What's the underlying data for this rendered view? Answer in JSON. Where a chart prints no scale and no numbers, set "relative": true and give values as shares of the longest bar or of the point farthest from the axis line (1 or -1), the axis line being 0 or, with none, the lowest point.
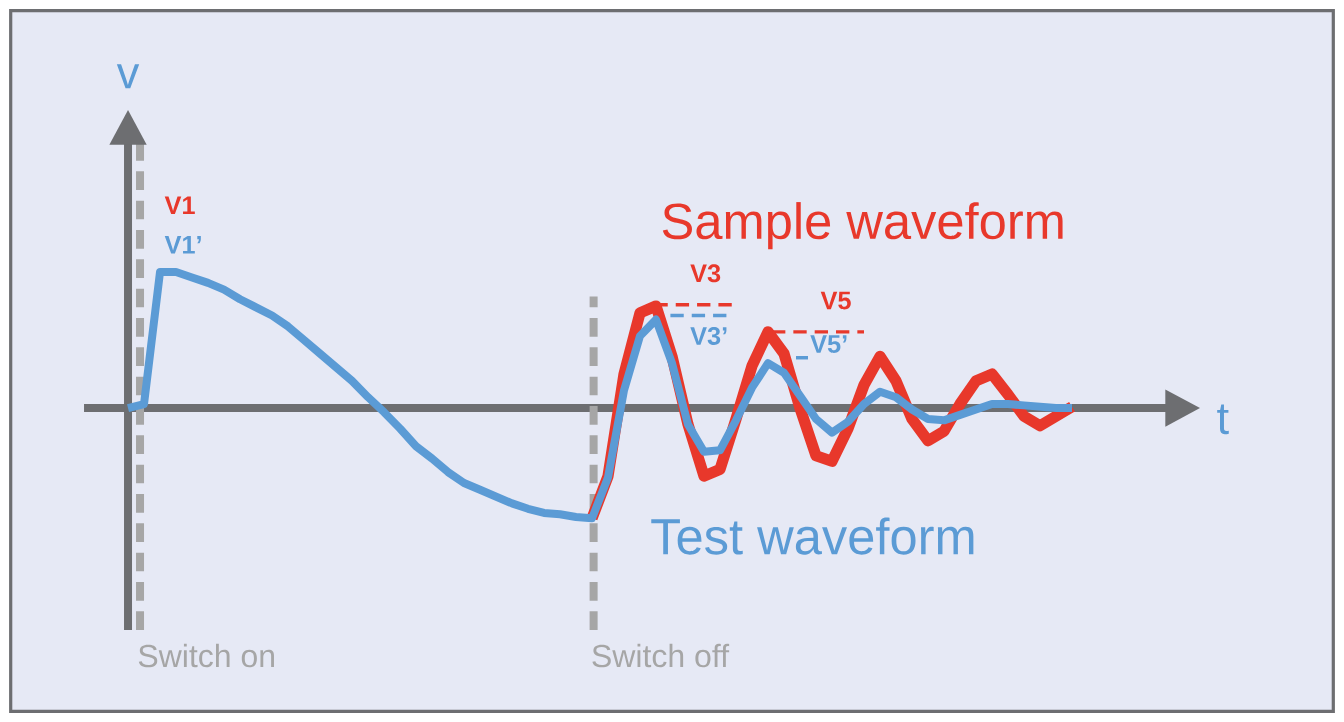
{
  "chart_data": {
    "type": "line",
    "relative": true,
    "xlabel": "t",
    "ylabel": "v",
    "legend": false,
    "marker": "none",
    "line_style": "solid",
    "categories": [
      null,
      null,
      null,
      null,
      null,
      null,
      null,
      null,
      null,
      null,
      null,
      null,
      null,
      null,
      null,
      null,
      null,
      null,
      null,
      null,
      null,
      null,
      null,
      null,
      null,
      null,
      null,
      null,
      null,
      null,
      null,
      null,
      null,
      null,
      null,
      null,
      null,
      null,
      null,
      null,
      null,
      null,
      null,
      null,
      null,
      null,
      null,
      null,
      null,
      null,
      null,
      null,
      null,
      null,
      null,
      null,
      null,
      null,
      null,
      null
    ],
    "series": [
      {
        "name": "Sample waveform",
        "color": "#e8382b",
        "values": [
          null,
          null,
          null,
          null,
          null,
          null,
          null,
          null,
          null,
          null,
          null,
          null,
          null,
          null,
          null,
          null,
          null,
          null,
          null,
          null,
          null,
          null,
          null,
          null,
          null,
          null,
          null,
          null,
          null,
          -0.81,
          -0.5,
          0.25,
          0.7,
          0.75,
          0.38,
          -0.12,
          -0.5,
          -0.45,
          -0.08,
          0.31,
          0.56,
          0.4,
          0,
          -0.35,
          -0.39,
          -0.15,
          0.17,
          0.38,
          0.2,
          -0.08,
          -0.24,
          -0.17,
          0.03,
          0.2,
          0.25,
          0.1,
          -0.06,
          -0.13,
          -0.06,
          0.01
        ]
      },
      {
        "name": "Test waveform",
        "color": "#5b9bd5",
        "values": [
          0,
          0.03,
          1,
          1,
          0.96,
          0.92,
          0.87,
          0.8,
          0.74,
          0.68,
          0.6,
          0.5,
          0.4,
          0.3,
          0.2,
          0.08,
          -0.03,
          -0.15,
          -0.28,
          -0.37,
          -0.47,
          -0.55,
          -0.6,
          -0.65,
          -0.7,
          -0.74,
          -0.77,
          -0.78,
          -0.8,
          -0.81,
          -0.51,
          0.13,
          0.53,
          0.65,
          0.33,
          -0.12,
          -0.32,
          -0.31,
          -0.09,
          0.15,
          0.33,
          0.26,
          0.09,
          -0.08,
          -0.18,
          -0.1,
          0.03,
          0.12,
          0.08,
          -0.01,
          -0.08,
          -0.09,
          -0.05,
          -0.01,
          0.03,
          0.03,
          0.02,
          0.01,
          0,
          0
        ]
      }
    ],
    "annotations": [
      "V1",
      "V1’",
      "V3",
      "V3’",
      "V5",
      "V5’",
      "Switch on",
      "Switch off"
    ]
  }
}
